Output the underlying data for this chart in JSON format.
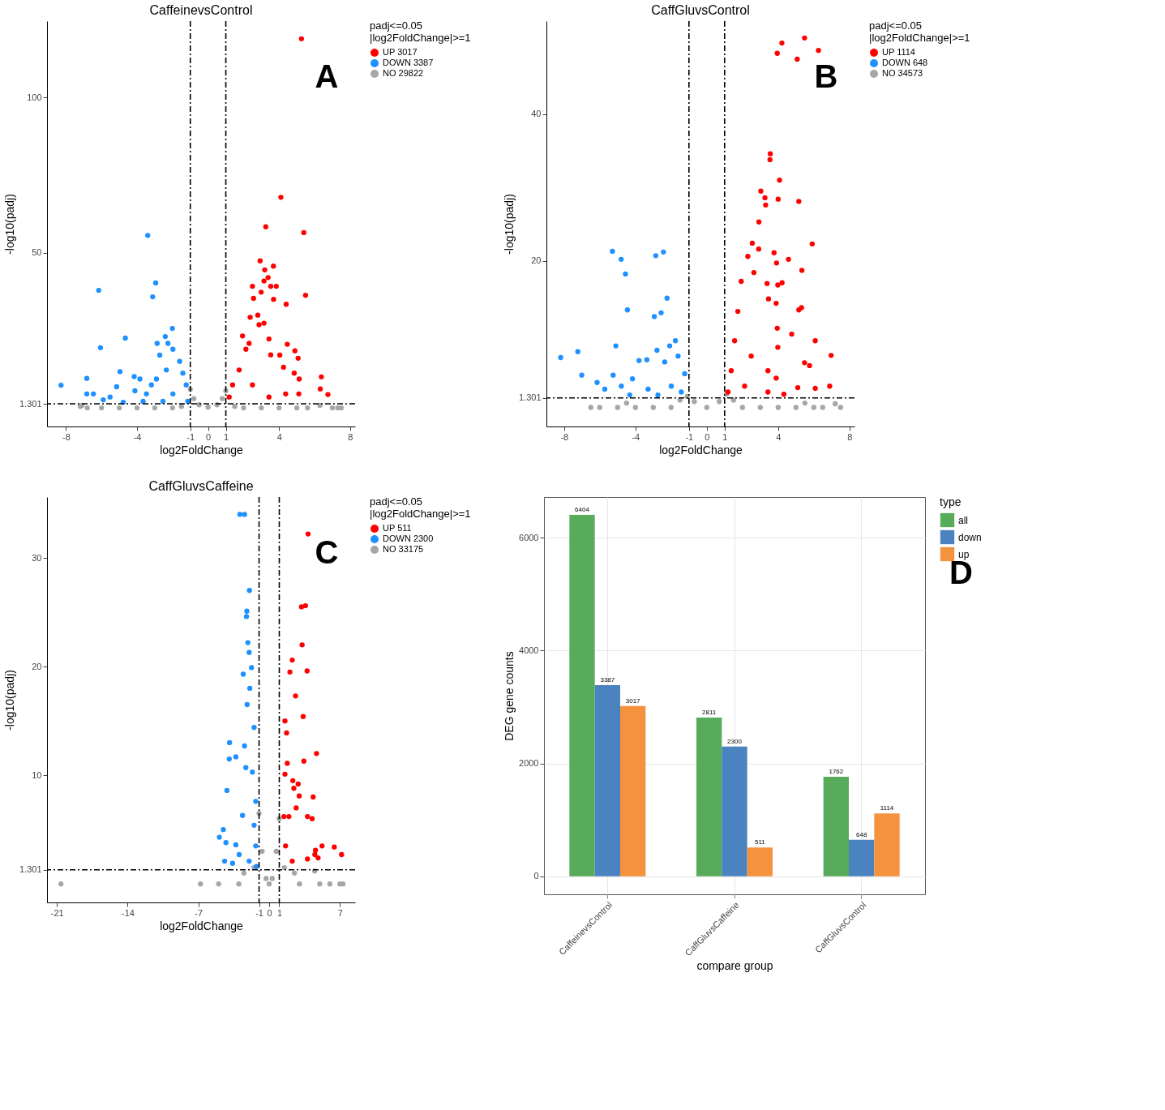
{
  "chart_data": [
    {
      "type": "scatter",
      "title": "CaffeinevsControl",
      "xlabel": "log2FoldChange",
      "ylabel": "-log10(padj)",
      "legend_title": "padj<=0.05\n|log2FoldChange|>=1",
      "legend": "right",
      "grid": false,
      "marker": "circle",
      "xlim": [
        -9.07,
        8.28
      ],
      "xticks": [
        -8,
        -4,
        -1,
        0,
        1,
        4,
        8
      ],
      "ylim": [
        -6,
        124.7
      ],
      "yticks": [
        1.301,
        50,
        100
      ],
      "ref_lines": [
        {
          "axis": "x",
          "value": -1,
          "line_style": "dashed"
        },
        {
          "axis": "x",
          "value": 1,
          "line_style": "dashed"
        },
        {
          "axis": "y",
          "value": 1.301,
          "line_style": "dashed"
        }
      ],
      "annotations": [
        "A"
      ],
      "series": [
        {
          "name": "UP 3017",
          "color": "#ff0000",
          "x": [
            5.26,
            4.1,
            3.25,
            5.39,
            2.93,
            3.68,
            3.19,
            3.38,
            3.15,
            3.53,
            3.84,
            2.5,
            5.49,
            2.99,
            3.69,
            2.56,
            4.4,
            2.8,
            2.37,
            3.15,
            2.87,
            1.94,
            3.43,
            4.46,
            4.89,
            3.53,
            4.04,
            5.07,
            4.25,
            4.85,
            5.13,
            6.38,
            6.32,
            6.75,
            5.11,
            1.38,
            1.75,
            2.13,
            1.19,
            2.5,
            3.43,
            4.37,
            2.31
          ],
          "values": [
            119.0,
            67.9,
            58.4,
            56.5,
            47.4,
            45.7,
            44.5,
            42.0,
            40.9,
            39.2,
            39.2,
            39.2,
            36.3,
            37.3,
            35.0,
            35.3,
            33.4,
            29.9,
            29.2,
            27.3,
            26.8,
            23.2,
            22.2,
            20.5,
            18.4,
            17.1,
            17.0,
            16.0,
            13.1,
            11.2,
            9.3,
            10.0,
            6.1,
            4.3,
            4.5,
            7.4,
            12.2,
            18.9,
            3.5,
            7.4,
            3.5,
            4.5,
            20.8
          ]
        },
        {
          "name": "DOWN 3387",
          "color": "#1e90ff",
          "x": [
            -8.28,
            -6.83,
            -6.16,
            -6.06,
            -4.66,
            -3.4,
            -2.95,
            -3.12,
            -2.01,
            -2.41,
            -4.96,
            -4.16,
            -3.84,
            -5.15,
            -6.83,
            -6.46,
            -5.9,
            -4.78,
            -4.12,
            -3.19,
            -2.87,
            -2.26,
            -2.72,
            -1.98,
            -1.6,
            -1.42,
            -1.23,
            -2.35,
            -2.91,
            -3.47,
            -1.98,
            -1.14,
            -2.54,
            -5.52,
            -3.66
          ],
          "values": [
            7.3,
            9.5,
            37.9,
            19.4,
            22.5,
            55.6,
            40.3,
            35.8,
            25.6,
            23.0,
            11.7,
            10.1,
            9.3,
            6.8,
            4.5,
            4.5,
            2.6,
            1.8,
            5.5,
            7.4,
            20.8,
            20.8,
            17.0,
            18.9,
            15.0,
            11.2,
            7.4,
            12.2,
            9.3,
            4.5,
            4.5,
            2.1,
            2.1,
            3.5,
            2.1
          ]
        },
        {
          "name": "NO 29822",
          "color": "#a6a6a6",
          "x": [
            -7.2,
            -7.1,
            -6.8,
            -6,
            -5,
            -4,
            -3,
            -2,
            -1.5,
            -1,
            -0.8,
            -0.5,
            0,
            0.5,
            0.8,
            1,
            1.5,
            2,
            3,
            4,
            5,
            5.6,
            6.3,
            7,
            7.3,
            7.5
          ],
          "values": [
            0.5,
            0.8,
            0,
            0,
            0,
            0,
            0,
            0,
            0.5,
            6.0,
            3,
            1,
            0.2,
            1,
            3,
            5.5,
            0.5,
            0,
            0,
            0,
            0,
            0,
            0.8,
            0,
            0,
            0
          ]
        }
      ]
    },
    {
      "type": "scatter",
      "title": "CaffGluvsControl",
      "xlabel": "log2FoldChange",
      "ylabel": "-log10(padj)",
      "legend_title": "padj<=0.05\n|log2FoldChange|>=1",
      "legend": "right",
      "grid": false,
      "marker": "circle",
      "xlim": [
        -8.99,
        8.28
      ],
      "xticks": [
        -8,
        -4,
        -1,
        0,
        1,
        4,
        8
      ],
      "ylim": [
        -2.6,
        52.7
      ],
      "yticks": [
        1.301,
        20,
        40
      ],
      "ref_lines": [
        {
          "axis": "x",
          "value": -1,
          "line_style": "dashed"
        },
        {
          "axis": "x",
          "value": 1,
          "line_style": "dashed"
        },
        {
          "axis": "y",
          "value": 1.301,
          "line_style": "dashed"
        }
      ],
      "annotations": [
        "B"
      ],
      "series": [
        {
          "name": "UP 1114",
          "color": "#ff0000",
          "x": [
            5.48,
            4.21,
            3.95,
            6.26,
            5.07,
            3.56,
            3.54,
            4.08,
            3.03,
            3.26,
            4.0,
            3.3,
            5.16,
            2.92,
            2.55,
            5.91,
            2.91,
            3.77,
            4.58,
            3.91,
            2.3,
            5.33,
            2.64,
            4.22,
            3.98,
            3.38,
            3.46,
            3.89,
            5.31,
            5.16,
            3.95,
            4.76,
            6.08,
            3.98,
            6.97,
            5.48,
            5.76,
            6.89,
            6.08,
            5.1,
            4.32,
            1.93,
            1.74,
            1.56,
            1.37,
            2.49,
            3.43,
            1.19,
            2.12,
            3.43,
            3.89
          ],
          "values": [
            50.4,
            49.7,
            48.3,
            48.7,
            47.5,
            34.6,
            33.8,
            31.0,
            29.5,
            28.6,
            28.4,
            27.6,
            28.1,
            25.3,
            22.4,
            22.3,
            21.6,
            21.1,
            20.2,
            19.7,
            20.6,
            18.7,
            18.4,
            17.0,
            16.7,
            16.9,
            14.8,
            14.2,
            13.6,
            13.3,
            10.8,
            10.0,
            9.1,
            8.2,
            7.1,
            6.1,
            5.7,
            2.9,
            2.6,
            2.7,
            1.8,
            17.2,
            13.1,
            9.1,
            5.0,
            7.0,
            5.0,
            2.1,
            2.9,
            2.1,
            4.0
          ]
        },
        {
          "name": "DOWN 648",
          "color": "#1e90ff",
          "x": [
            -8.19,
            -7.23,
            -7.01,
            -5.29,
            -4.8,
            -4.56,
            -4.45,
            -5.1,
            -5.25,
            -2.86,
            -2.43,
            -2.23,
            -2.56,
            -2.94,
            -1.76,
            -2.08,
            -2.79,
            -3.8,
            -3.36,
            -4.17,
            -6.15,
            -5.72,
            -4.79,
            -4.32,
            -3.29,
            -2.36,
            -1.61,
            -1.24,
            -1.99,
            -2.74,
            -1.43
          ],
          "values": [
            6.8,
            7.6,
            4.4,
            21.3,
            20.2,
            18.2,
            13.3,
            8.4,
            4.4,
            20.7,
            21.2,
            14.9,
            12.9,
            12.4,
            9.1,
            8.4,
            7.8,
            6.4,
            6.5,
            3.9,
            3.4,
            2.5,
            2.9,
            1.7,
            2.5,
            6.2,
            7.0,
            4.6,
            2.9,
            1.7,
            2.1
          ]
        },
        {
          "name": "NO 34573",
          "color": "#a6a6a6",
          "x": [
            -6.5,
            -6,
            -5,
            -4.5,
            -4,
            -3,
            -2,
            -1.5,
            -1.1,
            -0.7,
            0,
            0.7,
            1.1,
            1.5,
            2,
            3,
            4,
            5,
            5.5,
            6,
            6.5,
            7.2,
            7.5
          ],
          "values": [
            0,
            0,
            0,
            0.6,
            0,
            0,
            0,
            1,
            1.5,
            0.8,
            0,
            0.8,
            1.8,
            1,
            0,
            0,
            0,
            0,
            0.6,
            0,
            0,
            0.5,
            0
          ]
        }
      ]
    },
    {
      "type": "scatter",
      "title": "CaffGluvsCaffeine",
      "xlabel": "log2FoldChange",
      "ylabel": "-log10(padj)",
      "legend_title": "padj<=0.05\n|log2FoldChange|>=1",
      "legend": "right",
      "grid": false,
      "marker": "circle",
      "xlim": [
        -21.98,
        8.5
      ],
      "xticks": [
        -21,
        -14,
        -7,
        -1,
        0,
        1,
        7
      ],
      "ylim": [
        -1.7,
        35.6
      ],
      "yticks": [
        1.301,
        10,
        20,
        30
      ],
      "ref_lines": [
        {
          "axis": "x",
          "value": -1,
          "line_style": "dashed"
        },
        {
          "axis": "x",
          "value": 1,
          "line_style": "dashed"
        },
        {
          "axis": "y",
          "value": 1.301,
          "line_style": "dashed"
        }
      ],
      "annotations": [
        "C"
      ],
      "series": [
        {
          "name": "UP 511",
          "color": "#ff0000",
          "x": [
            3.85,
            3.2,
            3.59,
            3.26,
            2.28,
            3.75,
            2.05,
            2.61,
            3.36,
            1.56,
            1.72,
            4.68,
            3.43,
            1.79,
            1.56,
            2.34,
            2.87,
            2.44,
            2.97,
            4.35,
            2.67,
            3.79,
            4.25,
            1.95,
            5.23,
            6.44,
            7.16,
            4.58,
            4.52,
            3.79,
            4.84,
            1.62,
            2.28,
            1.46
          ],
          "values": [
            32.2,
            25.5,
            25.6,
            22.0,
            20.6,
            19.6,
            19.5,
            17.3,
            15.4,
            15.0,
            13.9,
            12.0,
            11.3,
            11.1,
            10.1,
            9.5,
            9.2,
            8.8,
            8.1,
            8.0,
            7.0,
            6.2,
            6.0,
            6.2,
            3.5,
            3.4,
            2.7,
            3.1,
            2.7,
            2.3,
            2.4,
            3.5,
            2.1,
            6.2
          ]
        },
        {
          "name": "DOWN 2300",
          "color": "#1e90ff",
          "x": [
            -2.9,
            -2.44,
            -1.95,
            -2.21,
            -2.25,
            -2.11,
            -1.98,
            -1.75,
            -2.57,
            -1.92,
            -2.18,
            -1.49,
            -3.92,
            -2.44,
            -3.3,
            -3.95,
            -2.31,
            -1.66,
            -4.18,
            -1.33,
            -2.64,
            -4.54,
            -4.93,
            -4.28,
            -3.3,
            -4.41,
            -3.62,
            -2.97,
            -1.98,
            -1.33,
            -1.49,
            -1.26
          ],
          "values": [
            34.0,
            34.0,
            27.0,
            25.1,
            24.6,
            22.2,
            21.3,
            19.9,
            19.3,
            18.0,
            16.5,
            14.4,
            13.0,
            12.7,
            11.7,
            11.5,
            10.7,
            10.3,
            8.6,
            7.6,
            6.3,
            5.0,
            4.3,
            3.8,
            3.6,
            2.1,
            1.9,
            2.7,
            2.1,
            3.5,
            5.4,
            1.6
          ]
        },
        {
          "name": "NO 33175",
          "color": "#a6a6a6",
          "x": [
            -20.6,
            -6.8,
            -5,
            -3,
            -2.5,
            -1.5,
            -1,
            -0.7,
            -0.3,
            0,
            0.3,
            0.7,
            1,
            1.5,
            2.5,
            3,
            4.5,
            5,
            6,
            7,
            7.3
          ],
          "values": [
            0,
            0,
            0,
            0,
            1,
            1.5,
            6.5,
            3,
            0.5,
            0,
            0.5,
            3,
            6,
            1.5,
            1,
            0,
            1.2,
            0,
            0,
            0,
            0
          ]
        }
      ]
    },
    {
      "type": "bar",
      "xlabel": "compare group",
      "ylabel": "DEG gene counts",
      "legend_title": "type",
      "legend": "right",
      "grid": true,
      "data_labels": true,
      "categories": [
        "CaffeinevsControl",
        "CaffGluvsCaffeine",
        "CaffGluvsControl"
      ],
      "ylim": [
        -320,
        6720
      ],
      "yticks": [
        0,
        2000,
        4000,
        6000
      ],
      "annotations": [
        "D"
      ],
      "series": [
        {
          "name": "all",
          "color": "#58ab5a",
          "values": [
            6404,
            2811,
            1762
          ]
        },
        {
          "name": "down",
          "color": "#4a83bf",
          "values": [
            3387,
            2300,
            648
          ]
        },
        {
          "name": "up",
          "color": "#f5923e",
          "values": [
            3017,
            511,
            1114
          ]
        }
      ]
    }
  ]
}
